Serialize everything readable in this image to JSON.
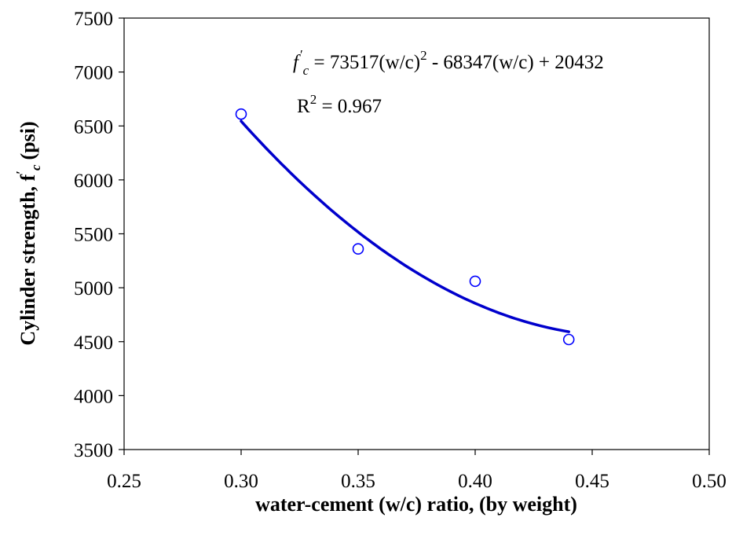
{
  "chart_data": {
    "type": "scatter",
    "xlabel": "water-cement (w/c) ratio, (by weight)",
    "ylabel": "Cylinder strength, f",
    "ylabel_prime": "′",
    "ylabel_sub": "c",
    "ylabel_unit": "(psi)",
    "xlim": [
      0.25,
      0.5
    ],
    "ylim": [
      3500,
      7500
    ],
    "xticks": [
      "0.25",
      "0.30",
      "0.35",
      "0.40",
      "0.45",
      "0.50"
    ],
    "yticks": [
      "3500",
      "4000",
      "4500",
      "5000",
      "5500",
      "6000",
      "6500",
      "7000",
      "7500"
    ],
    "grid": false,
    "series": [
      {
        "marker": "open-circle",
        "color": "#0000ff",
        "x": [
          0.3,
          0.35,
          0.4,
          0.44
        ],
        "y": [
          6610,
          5360,
          5060,
          4520
        ]
      }
    ],
    "trendline": {
      "type": "polynomial-2",
      "color": "#0000cc",
      "coefficients": [
        73517,
        -68347,
        20432
      ],
      "x_range": [
        0.3,
        0.44
      ]
    },
    "annotation": {
      "eq_f": "f",
      "eq_prime": "′",
      "eq_sub": "c",
      "eq_mid": " = 73517(w/c)",
      "eq_sup": "2",
      "eq_tail": " - 68347(w/c) + 20432",
      "r2_base": "R",
      "r2_sup": "2",
      "r2_tail": " = 0.967"
    }
  }
}
